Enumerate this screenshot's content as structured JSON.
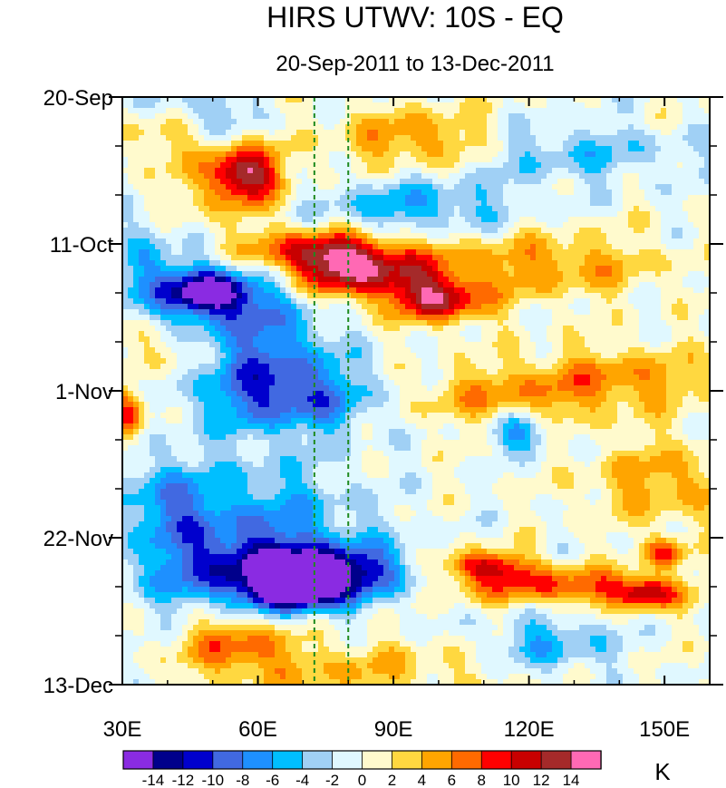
{
  "chart_data": {
    "type": "heatmap",
    "title": "HIRS UTWV: 10S - EQ",
    "subtitle": "20-Sep-2011 to 13-Dec-2011",
    "xlabel": "",
    "ylabel": "",
    "x_range": [
      30,
      160
    ],
    "x_ticks": [
      {
        "value": 30,
        "label": "30E"
      },
      {
        "value": 60,
        "label": "60E"
      },
      {
        "value": 90,
        "label": "90E"
      },
      {
        "value": 120,
        "label": "120E"
      },
      {
        "value": 150,
        "label": "150E"
      }
    ],
    "y_range_days": [
      0,
      84
    ],
    "y_ticks": [
      {
        "value": 0,
        "label": "20-Sep"
      },
      {
        "value": 21,
        "label": "11-Oct"
      },
      {
        "value": 42,
        "label": "1-Nov"
      },
      {
        "value": 63,
        "label": "22-Nov"
      },
      {
        "value": 84,
        "label": "13-Dec"
      }
    ],
    "reference_lines_x": [
      72.5,
      80
    ],
    "reference_line_color": "#1e8a1e",
    "colorbar": {
      "unit": "K",
      "levels": [
        -14,
        -12,
        -10,
        -8,
        -6,
        -4,
        -2,
        0,
        2,
        4,
        6,
        8,
        10,
        12,
        14
      ],
      "level_labels": [
        "-14",
        "-12",
        "-10",
        "-8",
        "-6",
        "-4",
        "-2",
        "0",
        "2",
        "4",
        "6",
        "8",
        "10",
        "12",
        "14"
      ],
      "colors": [
        "#8a2be2",
        "#00008b",
        "#0000cd",
        "#4169e1",
        "#1e90ff",
        "#00bfff",
        "#a0d0f5",
        "#e0f8ff",
        "#fffacd",
        "#ffd840",
        "#ffa500",
        "#ff6a00",
        "#ff0000",
        "#c80000",
        "#a52a2a",
        "#ff69b4"
      ]
    },
    "anomaly_features": [
      {
        "x": 57,
        "day": 11,
        "value": 10,
        "sx": 5,
        "sy": 2.5
      },
      {
        "x": 55,
        "day": 12,
        "value": 5,
        "sx": 9,
        "sy": 4
      },
      {
        "x": 38,
        "day": 4,
        "value": 5,
        "sx": 6,
        "sy": 3
      },
      {
        "x": 95,
        "day": 6,
        "value": 6,
        "sx": 12,
        "sy": 3
      },
      {
        "x": 73,
        "day": 22,
        "value": 8,
        "sx": 10,
        "sy": 2
      },
      {
        "x": 82,
        "day": 25,
        "value": 9,
        "sx": 10,
        "sy": 2.5
      },
      {
        "x": 100,
        "day": 29,
        "value": 11,
        "sx": 7,
        "sy": 2.2
      },
      {
        "x": 88,
        "day": 24,
        "value": 5,
        "sx": 25,
        "sy": 4
      },
      {
        "x": 31,
        "day": 45,
        "value": 10,
        "sx": 3,
        "sy": 2.5
      },
      {
        "x": 110,
        "day": 43,
        "value": 5,
        "sx": 20,
        "sy": 3
      },
      {
        "x": 140,
        "day": 40,
        "value": 5,
        "sx": 15,
        "sy": 3
      },
      {
        "x": 110,
        "day": 67,
        "value": 10,
        "sx": 7,
        "sy": 1.5
      },
      {
        "x": 126,
        "day": 70,
        "value": 8,
        "sx": 16,
        "sy": 2
      },
      {
        "x": 146,
        "day": 71,
        "value": 10,
        "sx": 5,
        "sy": 1.5
      },
      {
        "x": 150,
        "day": 65,
        "value": 9,
        "sx": 3,
        "sy": 1.5
      },
      {
        "x": 55,
        "day": 78,
        "value": 7,
        "sx": 8,
        "sy": 3
      },
      {
        "x": 80,
        "day": 82,
        "value": 4,
        "sx": 20,
        "sy": 3
      },
      {
        "x": 150,
        "day": 55,
        "value": 5,
        "sx": 12,
        "sy": 4
      },
      {
        "x": 38,
        "day": 35,
        "value": 4,
        "sx": 6,
        "sy": 3
      },
      {
        "x": 130,
        "day": 24,
        "value": 4,
        "sx": 14,
        "sy": 3
      },
      {
        "x": 50,
        "day": 28,
        "value": -12,
        "sx": 6,
        "sy": 2
      },
      {
        "x": 45,
        "day": 28,
        "value": -7,
        "sx": 15,
        "sy": 4
      },
      {
        "x": 62,
        "day": 36,
        "value": -7,
        "sx": 10,
        "sy": 6
      },
      {
        "x": 70,
        "day": 43,
        "value": -8,
        "sx": 16,
        "sy": 3.5
      },
      {
        "x": 75,
        "day": 68,
        "value": -11,
        "sx": 12,
        "sy": 2.5
      },
      {
        "x": 60,
        "day": 68,
        "value": -9,
        "sx": 18,
        "sy": 4
      },
      {
        "x": 58,
        "day": 60,
        "value": -6,
        "sx": 16,
        "sy": 6
      },
      {
        "x": 68,
        "day": 71,
        "value": -12,
        "sx": 6,
        "sy": 1.5
      },
      {
        "x": 94,
        "day": 16,
        "value": -6,
        "sx": 16,
        "sy": 3
      },
      {
        "x": 118,
        "day": 48,
        "value": -7,
        "sx": 5,
        "sy": 2
      },
      {
        "x": 40,
        "day": 58,
        "value": -6,
        "sx": 5,
        "sy": 4
      },
      {
        "x": 130,
        "day": 8,
        "value": -4,
        "sx": 18,
        "sy": 3
      },
      {
        "x": 45,
        "day": 2,
        "value": -5,
        "sx": 10,
        "sy": 2.5
      },
      {
        "x": 125,
        "day": 78,
        "value": -5,
        "sx": 10,
        "sy": 3
      },
      {
        "x": 35,
        "day": 22,
        "value": -4,
        "sx": 4,
        "sy": 4
      }
    ]
  }
}
